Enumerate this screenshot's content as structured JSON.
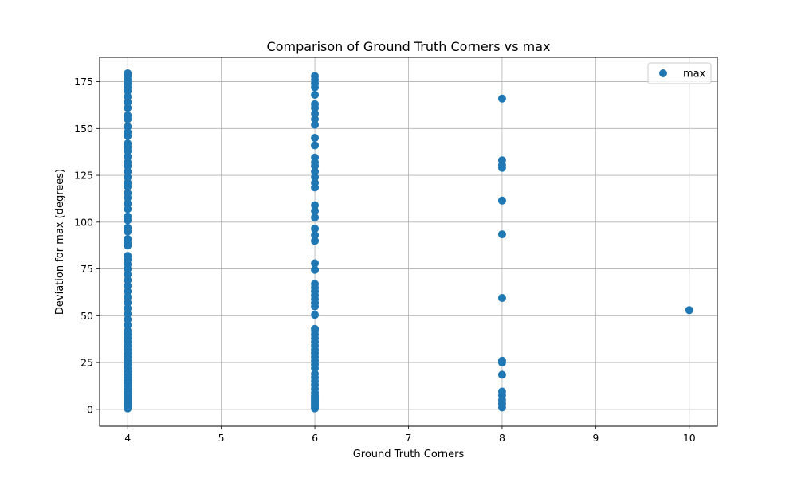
{
  "chart_data": {
    "type": "scatter",
    "title": "Comparison of Ground Truth Corners vs max",
    "xlabel": "Ground Truth Corners",
    "ylabel": "Deviation for max (degrees)",
    "xlim": [
      3.7,
      10.3
    ],
    "ylim": [
      -9,
      188
    ],
    "xticks": [
      4,
      5,
      6,
      7,
      8,
      9,
      10
    ],
    "yticks": [
      0,
      25,
      50,
      75,
      100,
      125,
      150,
      175
    ],
    "grid": true,
    "legend_position": "top-right",
    "colors": {
      "series": "#1f77b4",
      "grid": "#b0b0b0",
      "axis": "#000000"
    },
    "series": [
      {
        "name": "max",
        "points": [
          [
            4,
            0.5
          ],
          [
            4,
            1.5
          ],
          [
            4,
            2.5
          ],
          [
            4,
            3.5
          ],
          [
            4,
            4.5
          ],
          [
            4,
            5.5
          ],
          [
            4,
            6.5
          ],
          [
            4,
            7.5
          ],
          [
            4,
            8.5
          ],
          [
            4,
            9.5
          ],
          [
            4,
            11
          ],
          [
            4,
            12.5
          ],
          [
            4,
            14
          ],
          [
            4,
            15.5
          ],
          [
            4,
            17
          ],
          [
            4,
            18.5
          ],
          [
            4,
            20
          ],
          [
            4,
            22
          ],
          [
            4,
            24
          ],
          [
            4,
            26
          ],
          [
            4,
            28
          ],
          [
            4,
            30
          ],
          [
            4,
            32
          ],
          [
            4,
            34
          ],
          [
            4,
            36
          ],
          [
            4,
            38
          ],
          [
            4,
            40
          ],
          [
            4,
            42
          ],
          [
            4,
            45
          ],
          [
            4,
            48
          ],
          [
            4,
            51
          ],
          [
            4,
            54
          ],
          [
            4,
            57
          ],
          [
            4,
            60
          ],
          [
            4,
            63
          ],
          [
            4,
            66
          ],
          [
            4,
            69
          ],
          [
            4,
            72
          ],
          [
            4,
            75
          ],
          [
            4,
            77.5
          ],
          [
            4,
            80
          ],
          [
            4,
            82
          ],
          [
            4,
            87.5
          ],
          [
            4,
            89
          ],
          [
            4,
            91
          ],
          [
            4,
            95
          ],
          [
            4,
            97
          ],
          [
            4,
            101
          ],
          [
            4,
            103
          ],
          [
            4,
            107
          ],
          [
            4,
            110
          ],
          [
            4,
            113
          ],
          [
            4,
            115.5
          ],
          [
            4,
            119
          ],
          [
            4,
            121
          ],
          [
            4,
            124
          ],
          [
            4,
            127
          ],
          [
            4,
            130
          ],
          [
            4,
            132
          ],
          [
            4,
            135
          ],
          [
            4,
            138
          ],
          [
            4,
            140
          ],
          [
            4,
            142
          ],
          [
            4,
            146
          ],
          [
            4,
            148
          ],
          [
            4,
            151
          ],
          [
            4,
            155
          ],
          [
            4,
            157
          ],
          [
            4,
            161
          ],
          [
            4,
            164
          ],
          [
            4,
            167
          ],
          [
            4,
            170
          ],
          [
            4,
            172
          ],
          [
            4,
            174
          ],
          [
            4,
            176
          ],
          [
            4,
            178
          ],
          [
            4,
            179.5
          ],
          [
            6,
            0.5
          ],
          [
            6,
            1.5
          ],
          [
            6,
            2.5
          ],
          [
            6,
            3.5
          ],
          [
            6,
            4.5
          ],
          [
            6,
            5.5
          ],
          [
            6,
            6.5
          ],
          [
            6,
            7.5
          ],
          [
            6,
            9
          ],
          [
            6,
            11
          ],
          [
            6,
            13
          ],
          [
            6,
            15
          ],
          [
            6,
            17
          ],
          [
            6,
            19
          ],
          [
            6,
            22
          ],
          [
            6,
            24
          ],
          [
            6,
            26
          ],
          [
            6,
            28
          ],
          [
            6,
            30
          ],
          [
            6,
            32
          ],
          [
            6,
            34
          ],
          [
            6,
            36
          ],
          [
            6,
            38
          ],
          [
            6,
            40
          ],
          [
            6,
            42
          ],
          [
            6,
            43
          ],
          [
            6,
            50.5
          ],
          [
            6,
            55
          ],
          [
            6,
            57
          ],
          [
            6,
            59
          ],
          [
            6,
            61
          ],
          [
            6,
            63
          ],
          [
            6,
            65
          ],
          [
            6,
            67
          ],
          [
            6,
            74.5
          ],
          [
            6,
            78
          ],
          [
            6,
            90
          ],
          [
            6,
            93
          ],
          [
            6,
            96.5
          ],
          [
            6,
            102.5
          ],
          [
            6,
            106
          ],
          [
            6,
            109
          ],
          [
            6,
            118.5
          ],
          [
            6,
            121
          ],
          [
            6,
            124
          ],
          [
            6,
            127
          ],
          [
            6,
            130
          ],
          [
            6,
            132
          ],
          [
            6,
            134.5
          ],
          [
            6,
            141
          ],
          [
            6,
            145
          ],
          [
            6,
            152
          ],
          [
            6,
            155
          ],
          [
            6,
            158
          ],
          [
            6,
            161
          ],
          [
            6,
            163
          ],
          [
            6,
            168
          ],
          [
            6,
            172
          ],
          [
            6,
            174
          ],
          [
            6,
            176
          ],
          [
            6,
            178
          ],
          [
            8,
            1
          ],
          [
            8,
            3
          ],
          [
            8,
            5
          ],
          [
            8,
            7.5
          ],
          [
            8,
            9.5
          ],
          [
            8,
            18.5
          ],
          [
            8,
            25
          ],
          [
            8,
            26
          ],
          [
            8,
            59.5
          ],
          [
            8,
            93.5
          ],
          [
            8,
            111.5
          ],
          [
            8,
            129
          ],
          [
            8,
            130.5
          ],
          [
            8,
            133
          ],
          [
            8,
            166
          ],
          [
            10,
            53
          ]
        ]
      }
    ]
  }
}
